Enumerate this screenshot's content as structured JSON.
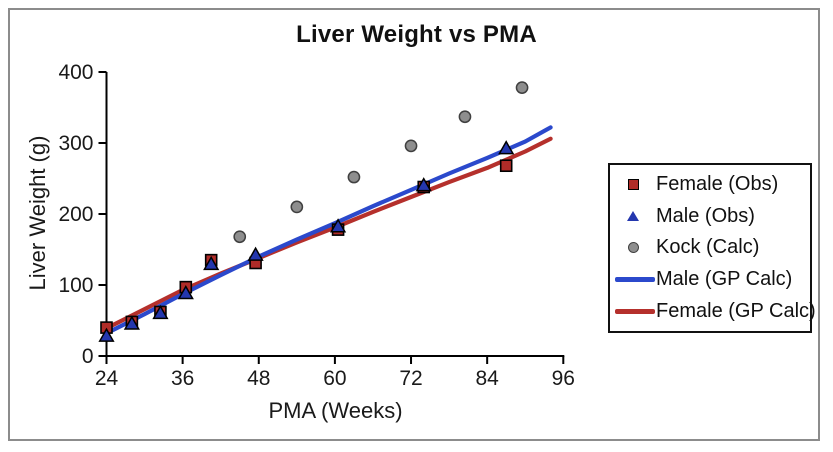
{
  "frame": {
    "border_color": "#8C8C8C",
    "background": "#FFFFFF"
  },
  "title": "Liver Weight vs PMA",
  "legend": {
    "items": [
      {
        "label": "Female (Obs)",
        "marker": "square",
        "color": "#B02C28"
      },
      {
        "label": "Male (Obs)",
        "marker": "triangle",
        "color": "#2437AE"
      },
      {
        "label": "Kock (Calc)",
        "marker": "circle",
        "color": "#8E8E8E"
      },
      {
        "label": "Male (GP Calc)",
        "marker": "line",
        "color": "#2B49CC"
      },
      {
        "label": "Female (GP Calc)",
        "marker": "line",
        "color": "#B5302C"
      }
    ]
  },
  "chart_data": {
    "type": "scatter",
    "title": "Liver Weight vs PMA",
    "xlabel": "PMA (Weeks)",
    "ylabel": "Liver Weight (g)",
    "xlim": [
      24,
      96
    ],
    "ylim": [
      0,
      400
    ],
    "x_ticks": [
      24,
      36,
      48,
      60,
      72,
      84,
      96
    ],
    "y_ticks": [
      0,
      100,
      200,
      300,
      400
    ],
    "grid": false,
    "legend_position": "right-outside",
    "axis_color": "#000000",
    "tick_label_color": "#1a1a1a",
    "series": [
      {
        "name": "Female (Obs)",
        "type": "scatter",
        "marker": "square",
        "color": "#B02C28",
        "edge": "#000000",
        "points": [
          [
            24,
            40
          ],
          [
            28,
            48
          ],
          [
            32.5,
            62
          ],
          [
            36.5,
            97
          ],
          [
            40.5,
            135
          ],
          [
            47.5,
            131
          ],
          [
            60.5,
            178
          ],
          [
            74,
            238
          ],
          [
            87,
            268
          ]
        ]
      },
      {
        "name": "Male (Obs)",
        "type": "scatter",
        "marker": "triangle",
        "color": "#2437AE",
        "edge": "#000000",
        "points": [
          [
            24,
            28
          ],
          [
            28,
            45
          ],
          [
            32.5,
            60
          ],
          [
            36.5,
            88
          ],
          [
            40.5,
            129
          ],
          [
            47.5,
            142
          ],
          [
            60.5,
            182
          ],
          [
            74,
            240
          ],
          [
            87,
            292
          ]
        ]
      },
      {
        "name": "Kock (Calc)",
        "type": "scatter",
        "marker": "circle",
        "color": "#8E8E8E",
        "edge": "#404040",
        "points": [
          [
            45,
            168
          ],
          [
            54,
            210
          ],
          [
            63,
            252
          ],
          [
            72,
            296
          ],
          [
            80.5,
            337
          ],
          [
            89.5,
            378
          ]
        ]
      },
      {
        "name": "Male (GP Calc)",
        "type": "line",
        "color": "#2B49CC",
        "line_width": 4.2,
        "points": [
          [
            24,
            32
          ],
          [
            30,
            59
          ],
          [
            36,
            87
          ],
          [
            42,
            114
          ],
          [
            48,
            140
          ],
          [
            54,
            164
          ],
          [
            60,
            187
          ],
          [
            66,
            211
          ],
          [
            72,
            234
          ],
          [
            78,
            257
          ],
          [
            84,
            279
          ],
          [
            90,
            302
          ],
          [
            94,
            322
          ]
        ]
      },
      {
        "name": "Female (GP Calc)",
        "type": "line",
        "color": "#B5302C",
        "line_width": 4.2,
        "points": [
          [
            24,
            39
          ],
          [
            30,
            66
          ],
          [
            36,
            93
          ],
          [
            42,
            116
          ],
          [
            48,
            138
          ],
          [
            54,
            160
          ],
          [
            60,
            181
          ],
          [
            66,
            203
          ],
          [
            72,
            224
          ],
          [
            78,
            245
          ],
          [
            84,
            265
          ],
          [
            90,
            288
          ],
          [
            94,
            306
          ]
        ]
      }
    ]
  }
}
